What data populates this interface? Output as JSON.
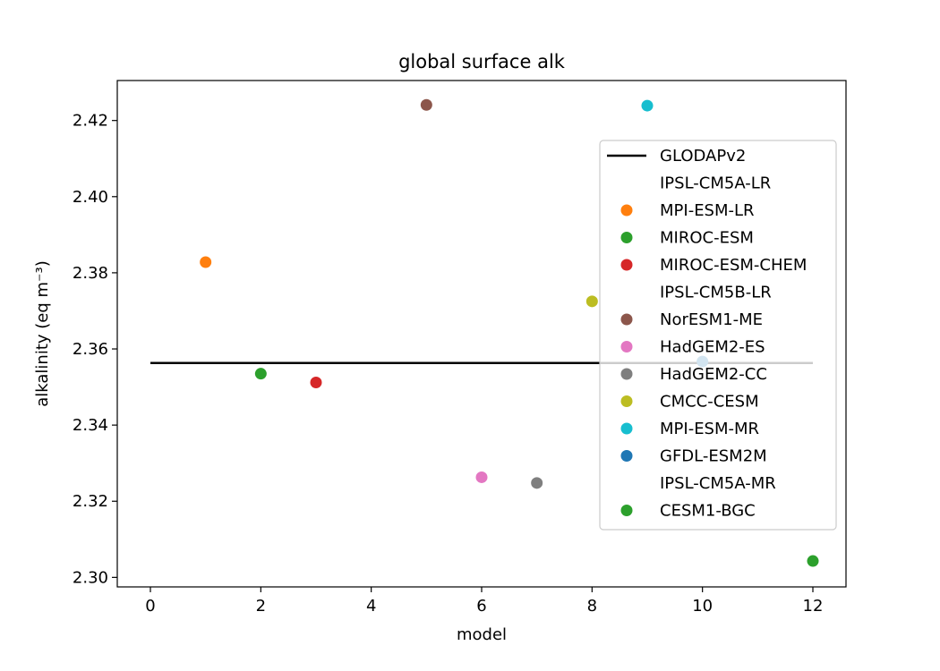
{
  "chart_data": {
    "type": "scatter",
    "title": "global surface alk",
    "xlabel": "model",
    "ylabel": "alkalinity (eq m⁻³)",
    "xlim": [
      -0.6,
      12.6
    ],
    "ylim": [
      2.2975,
      2.4305
    ],
    "xticks": [
      0,
      2,
      4,
      6,
      8,
      10,
      12
    ],
    "yticks": [
      2.3,
      2.32,
      2.34,
      2.36,
      2.38,
      2.4,
      2.42
    ],
    "ytick_labels": [
      "2.30",
      "2.32",
      "2.34",
      "2.36",
      "2.38",
      "2.40",
      "2.42"
    ],
    "reference_line": {
      "name": "GLODAPv2",
      "x": [
        0,
        12
      ],
      "y": 2.3563,
      "color": "#000000"
    },
    "series": [
      {
        "name": "IPSL-CM5A-LR",
        "x": 0,
        "y": null,
        "color": "#ffffff"
      },
      {
        "name": "MPI-ESM-LR",
        "x": 1,
        "y": 2.3828,
        "color": "#ff7f0e"
      },
      {
        "name": "MIROC-ESM",
        "x": 2,
        "y": 2.3535,
        "color": "#2ca02c"
      },
      {
        "name": "MIROC-ESM-CHEM",
        "x": 3,
        "y": 2.3512,
        "color": "#d62728"
      },
      {
        "name": "IPSL-CM5B-LR",
        "x": 4,
        "y": null,
        "color": "#ffffff"
      },
      {
        "name": "NorESM1-ME",
        "x": 5,
        "y": 2.4241,
        "color": "#8c564b"
      },
      {
        "name": "HadGEM2-ES",
        "x": 6,
        "y": 2.3263,
        "color": "#e377c2"
      },
      {
        "name": "HadGEM2-CC",
        "x": 7,
        "y": 2.3248,
        "color": "#7f7f7f"
      },
      {
        "name": "CMCC-CESM",
        "x": 8,
        "y": 2.3725,
        "color": "#bcbd22"
      },
      {
        "name": "MPI-ESM-MR",
        "x": 9,
        "y": 2.4239,
        "color": "#17becf"
      },
      {
        "name": "GFDL-ESM2M",
        "x": 10,
        "y": 2.3567,
        "color": "#1f77b4"
      },
      {
        "name": "IPSL-CM5A-MR",
        "x": 11,
        "y": null,
        "color": "#ffffff"
      },
      {
        "name": "CESM1-BGC",
        "x": 12,
        "y": 2.3043,
        "color": "#2ca02c"
      }
    ],
    "grid": false,
    "legend_position": "right"
  }
}
